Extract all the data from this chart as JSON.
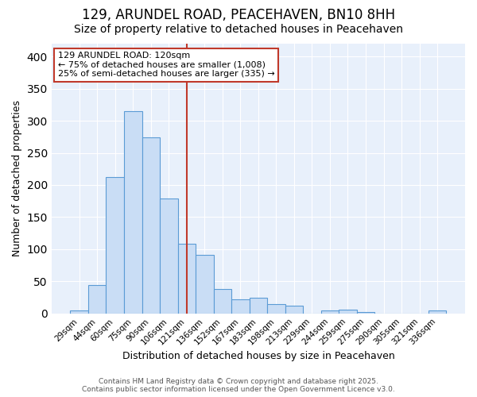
{
  "title": "129, ARUNDEL ROAD, PEACEHAVEN, BN10 8HH",
  "subtitle": "Size of property relative to detached houses in Peacehaven",
  "xlabel": "Distribution of detached houses by size in Peacehaven",
  "ylabel": "Number of detached properties",
  "bar_labels": [
    "29sqm",
    "44sqm",
    "60sqm",
    "75sqm",
    "90sqm",
    "106sqm",
    "121sqm",
    "136sqm",
    "152sqm",
    "167sqm",
    "183sqm",
    "198sqm",
    "213sqm",
    "229sqm",
    "244sqm",
    "259sqm",
    "275sqm",
    "290sqm",
    "305sqm",
    "321sqm",
    "336sqm"
  ],
  "bar_values": [
    5,
    44,
    212,
    315,
    274,
    179,
    109,
    91,
    38,
    22,
    24,
    14,
    12,
    0,
    5,
    6,
    2,
    0,
    0,
    0,
    4
  ],
  "bar_color": "#c9ddf5",
  "bar_edgecolor": "#5b9bd5",
  "vline_index": 6,
  "vline_color": "#c0392b",
  "annotation_title": "129 ARUNDEL ROAD: 120sqm",
  "annotation_line1": "← 75% of detached houses are smaller (1,008)",
  "annotation_line2": "25% of semi-detached houses are larger (335) →",
  "annotation_box_edgecolor": "#c0392b",
  "ylim": [
    0,
    420
  ],
  "yticks": [
    0,
    50,
    100,
    150,
    200,
    250,
    300,
    350,
    400
  ],
  "footer1": "Contains HM Land Registry data © Crown copyright and database right 2025.",
  "footer2": "Contains public sector information licensed under the Open Government Licence v3.0.",
  "bg_color": "#e8f0fb",
  "grid_color": "#ffffff",
  "title_fontsize": 12,
  "subtitle_fontsize": 10,
  "ylabel_fontsize": 9,
  "xlabel_fontsize": 9,
  "tick_fontsize": 7.5,
  "footer_fontsize": 6.5,
  "annotation_fontsize": 8
}
